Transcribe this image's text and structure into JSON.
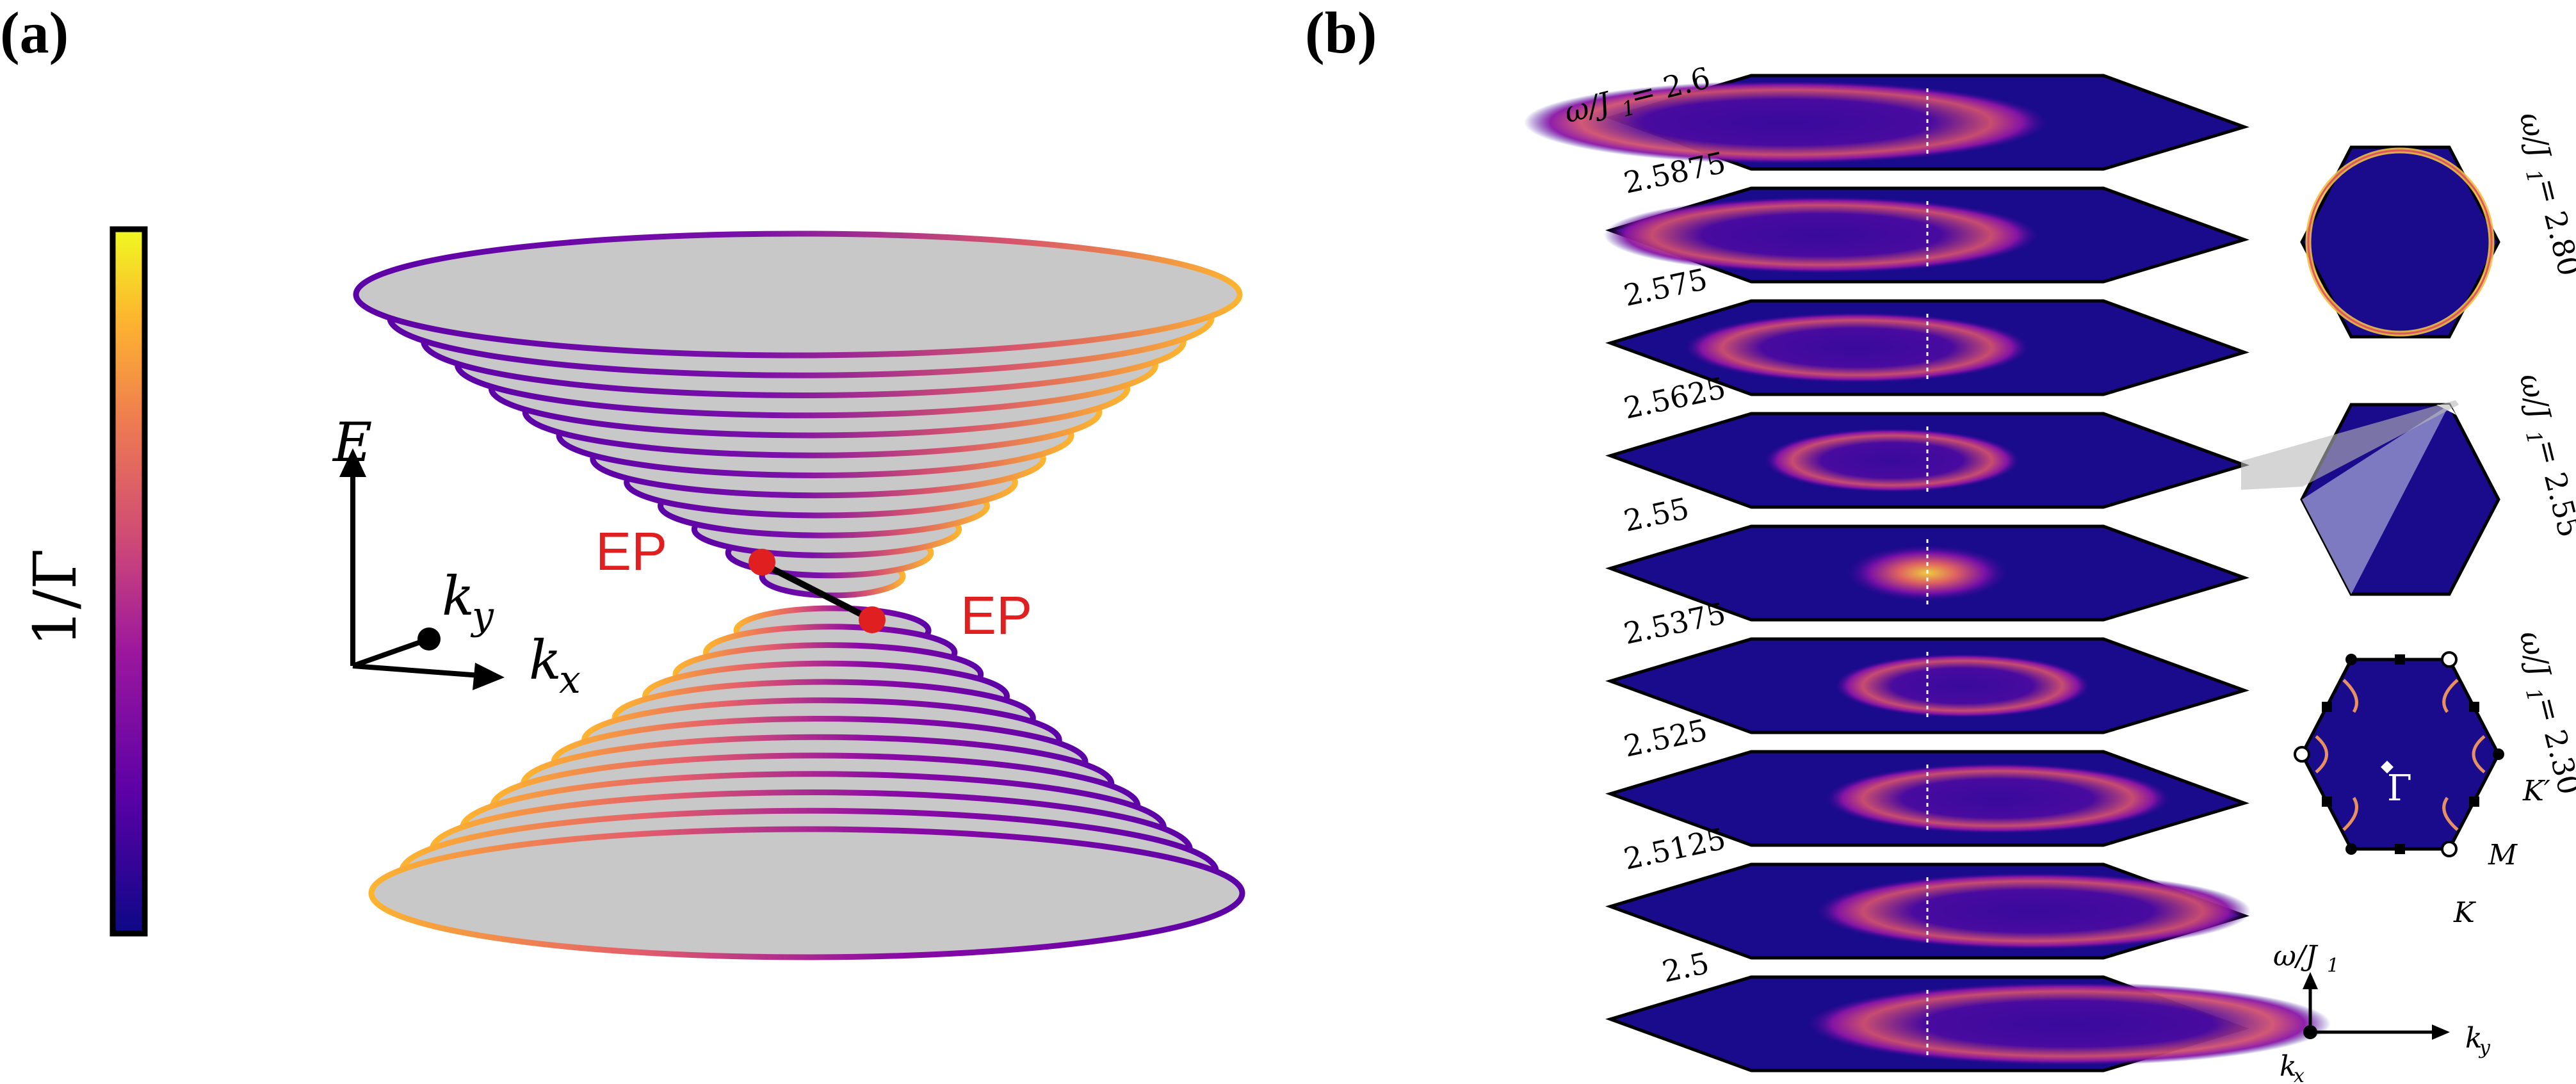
{
  "panel_a": {
    "label": "(a)",
    "colorbar_label": "1/Γ",
    "colorbar_colors": [
      "#0d0887",
      "#5c01a6",
      "#9c179e",
      "#cc4778",
      "#ed7953",
      "#fdb42f",
      "#f0f921"
    ],
    "axis_e": "E",
    "axis_ky": "k",
    "axis_ky_sub": "y",
    "axis_kx": "k",
    "axis_kx_sub": "x",
    "ep_left": "EP",
    "ep_right": "EP",
    "cone_fill": "#c8c8c8",
    "ep_color": "#e02020"
  },
  "panel_b": {
    "label": "(b)",
    "stack_first_label": "ω/J",
    "stack_first_sub": "1",
    "stack_first_value": " = 2.6",
    "slice_labels": [
      "2.5875",
      "2.575",
      "2.5625",
      "2.55",
      "2.5375",
      "2.525",
      "2.5125",
      "2.5"
    ],
    "hex_labels": [
      {
        "prefix": "ω/J",
        "sub": "1",
        "value": " = 2.80"
      },
      {
        "prefix": "ω/J",
        "sub": "1",
        "value": " = 2.55"
      },
      {
        "prefix": "ω/J",
        "sub": "1",
        "value": " = 2.30"
      }
    ],
    "bz_gamma": "Γ",
    "bz_kprime": "K′",
    "bz_m": "M",
    "bz_k": "K",
    "axis_omega": "ω/J",
    "axis_omega_sub": "1",
    "axis_ky": "k",
    "axis_ky_sub": "y",
    "axis_kx": "k",
    "axis_kx_sub": "x",
    "background_color": "#1a0a8c"
  }
}
